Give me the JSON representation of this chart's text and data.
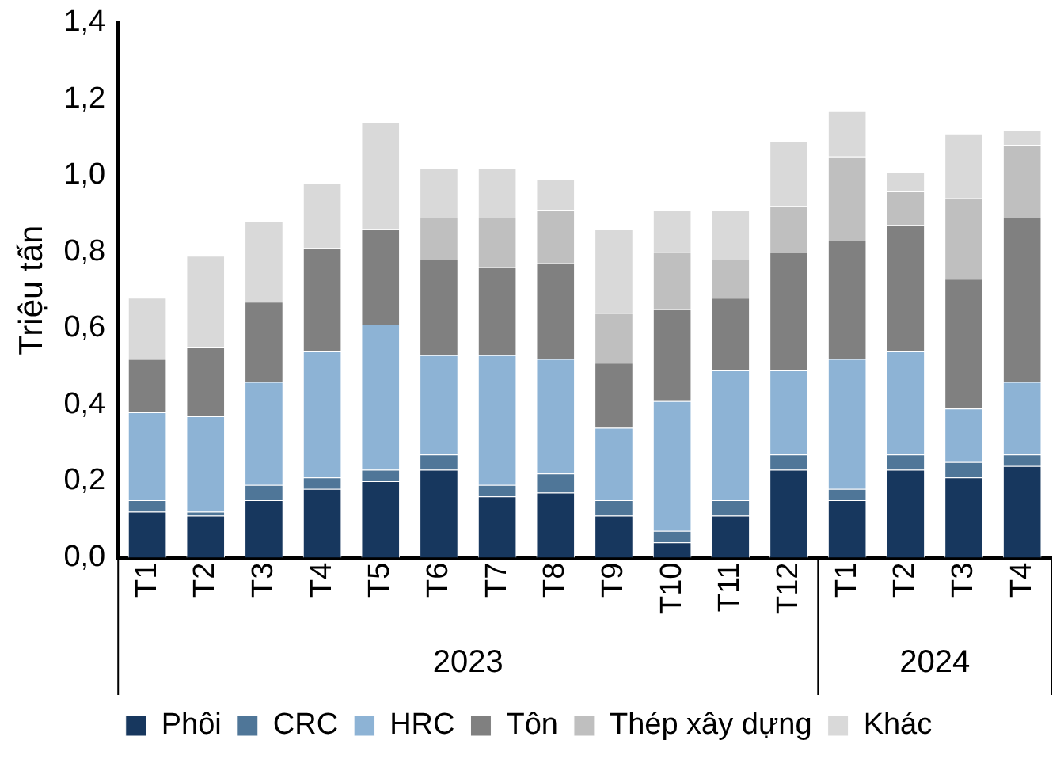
{
  "chart_data": {
    "type": "bar",
    "stacked": true,
    "ylabel": "Triệu tấn",
    "categories": [
      "T1",
      "T2",
      "T3",
      "T4",
      "T5",
      "T6",
      "T7",
      "T8",
      "T9",
      "T10",
      "T11",
      "T12",
      "T1",
      "T2",
      "T3",
      "T4"
    ],
    "annotations": [
      "2023",
      "2024"
    ],
    "series": [
      {
        "name": "Phôi",
        "color": "#17375e",
        "values": [
          0.12,
          0.11,
          0.15,
          0.18,
          0.2,
          0.23,
          0.16,
          0.17,
          0.11,
          0.04,
          0.11,
          0.23,
          0.15,
          0.23,
          0.21,
          0.24
        ]
      },
      {
        "name": "CRC",
        "color": "#4f7698",
        "values": [
          0.03,
          0.01,
          0.04,
          0.03,
          0.03,
          0.04,
          0.03,
          0.05,
          0.04,
          0.03,
          0.04,
          0.04,
          0.03,
          0.04,
          0.04,
          0.03
        ]
      },
      {
        "name": "HRC",
        "color": "#8db3d5",
        "values": [
          0.23,
          0.25,
          0.27,
          0.33,
          0.38,
          0.26,
          0.34,
          0.3,
          0.19,
          0.34,
          0.34,
          0.22,
          0.34,
          0.27,
          0.14,
          0.19
        ]
      },
      {
        "name": "Tôn",
        "color": "#808080",
        "values": [
          0.14,
          0.18,
          0.21,
          0.27,
          0.25,
          0.25,
          0.23,
          0.25,
          0.17,
          0.24,
          0.19,
          0.31,
          0.31,
          0.33,
          0.34,
          0.43
        ]
      },
      {
        "name": "Thép xây dựng",
        "color": "#bfbfbf",
        "values": [
          0,
          0,
          0,
          0,
          0,
          0.11,
          0.13,
          0.14,
          0.13,
          0.15,
          0.1,
          0.12,
          0.22,
          0.09,
          0.21,
          0.19
        ]
      },
      {
        "name": "Khác",
        "color": "#d9d9d9",
        "values": [
          0.16,
          0.24,
          0.21,
          0.17,
          0.28,
          0.13,
          0.13,
          0.08,
          0.22,
          0.11,
          0.13,
          0.17,
          0.12,
          0.05,
          0.17,
          0.04
        ]
      }
    ],
    "ylim": [
      0,
      1.4
    ],
    "yticks": [
      {
        "value": 0,
        "label": "0,0"
      },
      {
        "value": 0.2,
        "label": "0,2"
      },
      {
        "value": 0.4,
        "label": "0,4"
      },
      {
        "value": 0.6,
        "label": "0,6"
      },
      {
        "value": 0.8,
        "label": "0,8"
      },
      {
        "value": 1.0,
        "label": "1,0"
      },
      {
        "value": 1.2,
        "label": "1,2"
      },
      {
        "value": 1.4,
        "label": "1,4"
      }
    ],
    "grid": false,
    "legend": "bottom"
  }
}
